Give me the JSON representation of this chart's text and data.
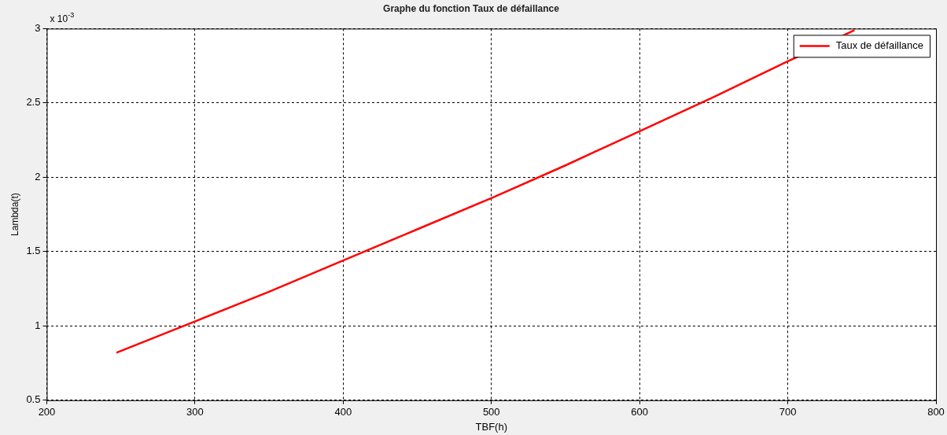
{
  "chart_data": {
    "type": "line",
    "title": "Graphe du fonction Taux de défaillance",
    "xlabel": "TBF(h)",
    "ylabel": "Lambda(t)",
    "x": [
      247,
      300,
      350,
      400,
      450,
      500,
      550,
      600,
      650,
      700,
      745
    ],
    "series": [
      {
        "name": "Taux de défaillance",
        "color": "#ff0000",
        "values": [
          0.82,
          1.03,
          1.23,
          1.44,
          1.65,
          1.86,
          2.08,
          2.31,
          2.54,
          2.78,
          2.99
        ]
      }
    ],
    "xlim": [
      200,
      800
    ],
    "xticks": [
      200,
      300,
      400,
      500,
      600,
      700,
      800
    ],
    "ylim": [
      0.5,
      3
    ],
    "yticks": [
      0.5,
      1,
      1.5,
      2,
      2.5,
      3
    ],
    "annotations": [
      "x 10$^{-3}$"
    ],
    "grid": true,
    "legend": "top right",
    "marker": "none",
    "line_style": "solid"
  }
}
